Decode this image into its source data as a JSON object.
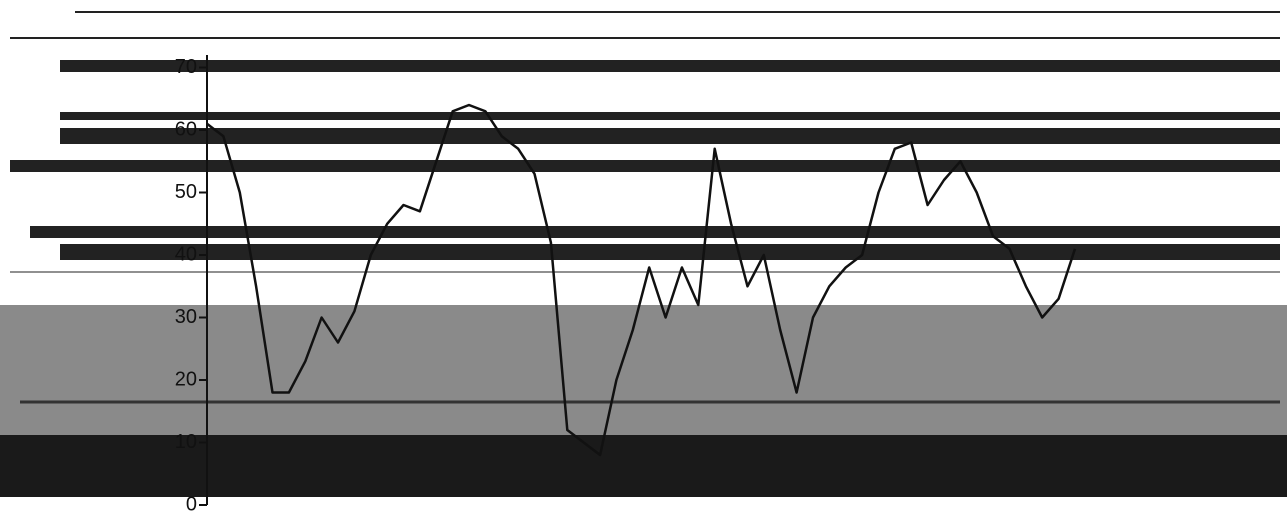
{
  "chart_data": {
    "type": "line",
    "color": "#111111",
    "values": [
      61,
      59,
      50,
      35,
      18,
      18,
      23,
      30,
      26,
      31,
      40,
      45,
      48,
      47,
      55,
      63,
      64,
      63,
      59,
      57,
      53,
      42,
      12,
      10,
      8,
      20,
      28,
      38,
      30,
      38,
      32,
      57,
      45,
      35,
      40,
      28,
      18,
      30,
      35,
      38,
      40,
      50,
      57,
      58,
      48,
      52,
      55,
      50,
      43,
      41,
      35,
      30,
      33,
      41
    ],
    "ylim": [
      0,
      72
    ],
    "yticks": [
      0,
      10,
      20,
      30,
      40,
      50,
      60,
      70
    ]
  }
}
